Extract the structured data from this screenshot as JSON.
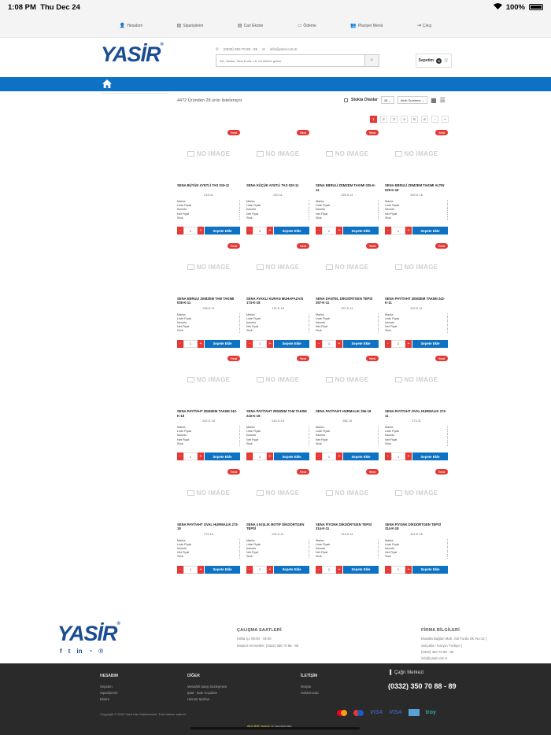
{
  "status_bar": {
    "time": "1:08 PM",
    "date": "Thu Dec 24",
    "battery": "100%"
  },
  "top_nav": [
    {
      "icon": "user-icon",
      "label": "Hesabım"
    },
    {
      "icon": "document-icon",
      "label": "Siparişlerim"
    },
    {
      "icon": "document-icon",
      "label": "Cari Ekstre"
    },
    {
      "icon": "card-icon",
      "label": "Ödeme"
    },
    {
      "icon": "users-icon",
      "label": "Plasiyer Menü"
    },
    {
      "icon": "logout-icon",
      "label": "Çıkış"
    }
  ],
  "header": {
    "logo": "YASİR",
    "logo_mark": "®",
    "phone": "(0332) 350 70 88 - 89",
    "email": "info@yasir.com.tr",
    "search_placeholder": "Adı, Marka, Stok Kodu, v.b. bir kelime giriniz.",
    "cart_label": "Sepetim",
    "cart_count": "0"
  },
  "listing": {
    "summary": "4472 Üründen 28 ürün listeleniyor.",
    "in_stock_label": "Stokta Olanlar",
    "page_size": "28",
    "sort": "Akıllı Sıralama"
  },
  "pagination": [
    "1",
    "2",
    "3",
    "4",
    "5",
    "6",
    "›",
    "»"
  ],
  "labels": {
    "new_badge": "Yeni",
    "no_image": "NO IMAGE",
    "add_to_cart": "Sepete Ekle",
    "spec_labels": [
      "Marka",
      "Liste Fiyatı",
      "İskonto",
      "Net Fiyat",
      "Stok"
    ],
    "qty": "1",
    "minus": "-",
    "plus": "+"
  },
  "products": [
    {
      "name": "SENA BÜYÜK AYETLİ TAS 019-11",
      "code": "019-11"
    },
    {
      "name": "SENA KÜÇÜK AYETLİ TAS 020-11",
      "code": "020-11"
    },
    {
      "name": "SENA EBRULİ ZEMZEM TAKIMI 025-K-11",
      "code": "025-K-11"
    },
    {
      "name": "SENA EBRULİ ZEMZEM TAKIMI ALTIN 025-K-18",
      "code": "025-K-18"
    },
    {
      "name": "SENA EBRULİ ZEMZEM TAM TAKIMI 026-K-11",
      "code": "026-K-11"
    },
    {
      "name": "SENA AYAKLI KURAN MUHAFAZASI 174-K-18",
      "code": "174-K-18"
    },
    {
      "name": "SENA DANTEL DİKDÖRTGEN TEPSİ 257-K-11",
      "code": "257-K-11"
    },
    {
      "name": "SENA PAYİTAHT ZEMZEM TAKIMI 242-K-11",
      "code": "242-K-11"
    },
    {
      "name": "SENA PAYİTAHT ZEMZEM TAKIMI 242-K-18",
      "code": "242-K-18"
    },
    {
      "name": "SENA PAYİTAHT ZEMZEM TAM TAKIMI 243-K-18",
      "code": "243-K-18"
    },
    {
      "name": "SENA PAYİTAHT HURMALIK 256-18",
      "code": "256-18"
    },
    {
      "name": "SENA PAYİTAHT OVAL HURMALIK 273-11",
      "code": "273-11"
    },
    {
      "name": "SENA PAYİTAHT OVAL HURMALIK 273-18",
      "code": "273-18"
    },
    {
      "name": "SENA 4 KIŞLIK MOTİF DİKDÖRTGEN TEPSİ",
      "code": "291-K-11"
    },
    {
      "name": "SENA FİYONK DİKDÖRTGEN TEPSİ 314-K-11",
      "code": "314-K-11"
    },
    {
      "name": "SENA FİYONK DİKDÖRTGEN TEPSİ 314-K-18",
      "code": "314-K-18"
    }
  ],
  "footer": {
    "logo": "YASİR",
    "hours_title": "ÇALIŞMA SAATLERİ",
    "hours_lines": [
      "Hafta İçi: 08:00 - 18:00",
      "Müşteri Hizmetleri: (0332) 350 70 88 - 89"
    ],
    "firm_title": "FİRMA BİLGİLERİ",
    "firm_lines": [
      "Musalla Bağları Mah. Gül Yurdu Sk. No:12 (",
      "Selçuklu / Konya / Türkiye )",
      "(0332) 350 70 88 - 89",
      "info@yasir.com.tr"
    ],
    "account_title": "HESABIM",
    "account_links": [
      "Sepetim",
      "Siparişlerim",
      "Ekstre"
    ],
    "other_title": "DİĞER",
    "other_links": [
      "Mesafeli Satış Sözleşmesi",
      "İptal - İade Koşulları",
      "Hizmet Şartları"
    ],
    "contact_title": "İLETİŞİM",
    "contact_links": [
      "İletişim",
      "Hakkımızda"
    ],
    "call_center_label": "Çağrı Merkezi",
    "call_center_phone": "(0332) 350 70 88 - 89",
    "copyright": "Copyright © 2020 Yasir Hac Malzemeleri. Tüm hakları saklıdır.",
    "payment": [
      "VISA",
      "VISA",
      "troy"
    ],
    "powered_brand": "Akıllı B2B Yazılımı",
    "powered_suffix": "ile hazırlanmıştır."
  }
}
